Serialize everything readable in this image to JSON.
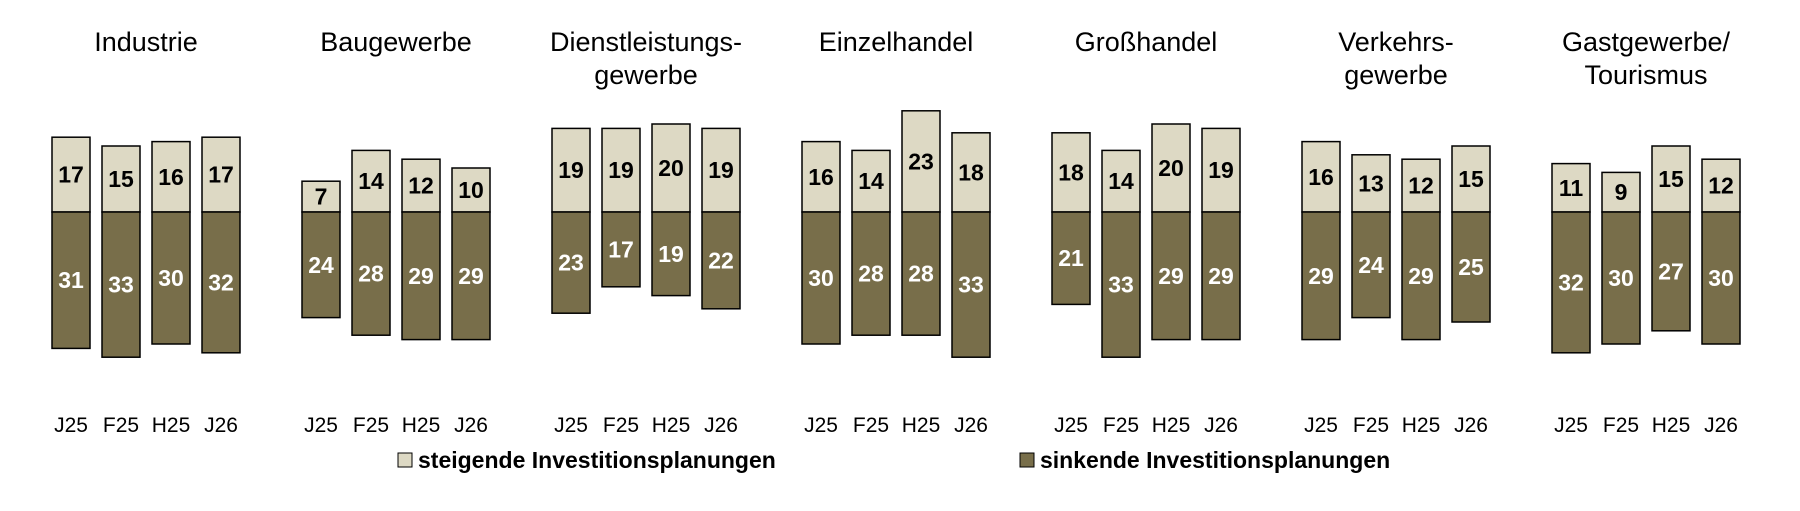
{
  "chart_data": {
    "type": "bar",
    "subtype": "diverging-stacked",
    "categories": [
      "J25",
      "F25",
      "H25",
      "J26"
    ],
    "colors": {
      "rising": "#ddd9c4",
      "falling": "#786e4a",
      "border": "#000000"
    },
    "legend": {
      "placement": "bottom",
      "items": [
        {
          "key": "rising",
          "label": "steigende Investitionsplanungen"
        },
        {
          "key": "falling",
          "label": "sinkende Investitionsplanungen"
        }
      ]
    },
    "panels": [
      {
        "title": [
          "Industrie"
        ],
        "rising": [
          17,
          15,
          16,
          17
        ],
        "falling": [
          31,
          33,
          30,
          32
        ]
      },
      {
        "title": [
          "Baugewerbe"
        ],
        "rising": [
          7,
          14,
          12,
          10
        ],
        "falling": [
          24,
          28,
          29,
          29
        ]
      },
      {
        "title": [
          "Dienstleistungs-",
          "gewerbe"
        ],
        "rising": [
          19,
          19,
          20,
          19
        ],
        "falling": [
          23,
          17,
          19,
          22
        ]
      },
      {
        "title": [
          "Einzelhandel"
        ],
        "rising": [
          16,
          14,
          23,
          18
        ],
        "falling": [
          30,
          28,
          28,
          33
        ]
      },
      {
        "title": [
          "Großhandel"
        ],
        "rising": [
          18,
          14,
          20,
          19
        ],
        "falling": [
          21,
          33,
          29,
          29
        ]
      },
      {
        "title": [
          "Verkehrs-",
          "gewerbe"
        ],
        "rising": [
          16,
          13,
          12,
          15
        ],
        "falling": [
          29,
          24,
          29,
          25
        ]
      },
      {
        "title": [
          "Gastgewerbe/",
          "Tourismus"
        ],
        "rising": [
          11,
          9,
          15,
          12
        ],
        "falling": [
          32,
          30,
          27,
          30
        ]
      }
    ]
  }
}
